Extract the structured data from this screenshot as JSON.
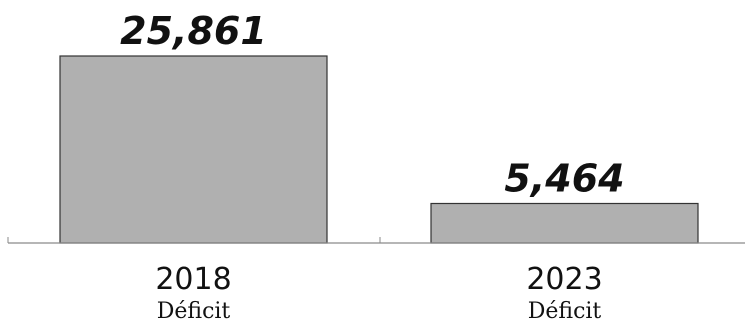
{
  "chart_data": {
    "type": "bar",
    "categories": [
      "2018",
      "2023"
    ],
    "sublabels": [
      "Déficit",
      "Déficit"
    ],
    "values": [
      25861,
      5464
    ],
    "value_labels": [
      "25,861",
      "5,464"
    ],
    "ylim": [
      0,
      25861
    ],
    "grid": false,
    "legend": "none",
    "colors": {
      "bar_fill": "#b0b0b0",
      "bar_stroke": "#333333",
      "axis": "#8a8a8a",
      "text": "#111111"
    }
  }
}
